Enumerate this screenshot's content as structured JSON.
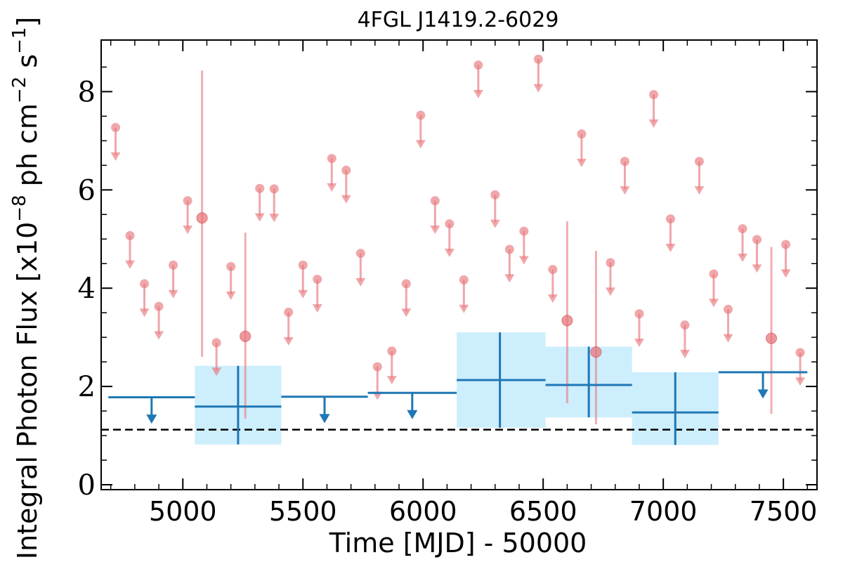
{
  "chart_data": {
    "type": "scatter",
    "title": "4FGL J1419.2-6029",
    "xlabel": "Time [MJD] - 50000",
    "ylabel": "Integral Photon Flux [x10^{-8} ph cm^{-2} s^{-1}]",
    "ylabel_parts": {
      "pre": "Integral Photon Flux [x10",
      "e1": "−8",
      "mid1": " ph cm",
      "e2": "−2",
      "mid2": " s",
      "e3": "−1",
      "post": "]"
    },
    "xlim": [
      4660,
      7640
    ],
    "ylim": [
      -0.1,
      9.05
    ],
    "xticks": [
      5000,
      5500,
      6000,
      6500,
      7000,
      7500
    ],
    "yticks": [
      0,
      2,
      4,
      6,
      8
    ],
    "reference_line": {
      "y": 1.12,
      "style": "dashed",
      "color": "#000000"
    },
    "colors": {
      "fine": "#e8787d",
      "coarse": "#1f77b4",
      "band": "#cdeefd"
    },
    "fine_bins": {
      "name": "",
      "upper_limits": [
        {
          "x": 4720,
          "y": 7.27
        },
        {
          "x": 4780,
          "y": 5.07
        },
        {
          "x": 4840,
          "y": 4.09
        },
        {
          "x": 4900,
          "y": 3.63
        },
        {
          "x": 4960,
          "y": 4.47
        },
        {
          "x": 5020,
          "y": 5.78
        },
        {
          "x": 5140,
          "y": 2.89
        },
        {
          "x": 5200,
          "y": 4.44
        },
        {
          "x": 5320,
          "y": 6.03
        },
        {
          "x": 5380,
          "y": 6.02
        },
        {
          "x": 5440,
          "y": 3.51
        },
        {
          "x": 5500,
          "y": 4.47
        },
        {
          "x": 5560,
          "y": 4.18
        },
        {
          "x": 5620,
          "y": 6.64
        },
        {
          "x": 5680,
          "y": 6.4
        },
        {
          "x": 5740,
          "y": 4.71
        },
        {
          "x": 5810,
          "y": 2.4
        },
        {
          "x": 5870,
          "y": 2.72
        },
        {
          "x": 5930,
          "y": 4.09
        },
        {
          "x": 5990,
          "y": 7.52
        },
        {
          "x": 6050,
          "y": 5.78
        },
        {
          "x": 6110,
          "y": 5.31
        },
        {
          "x": 6170,
          "y": 4.17
        },
        {
          "x": 6230,
          "y": 8.54
        },
        {
          "x": 6300,
          "y": 5.9
        },
        {
          "x": 6360,
          "y": 4.79
        },
        {
          "x": 6420,
          "y": 5.16
        },
        {
          "x": 6480,
          "y": 8.66
        },
        {
          "x": 6540,
          "y": 4.38
        },
        {
          "x": 6660,
          "y": 7.14
        },
        {
          "x": 6780,
          "y": 4.52
        },
        {
          "x": 6840,
          "y": 6.58
        },
        {
          "x": 6900,
          "y": 3.48
        },
        {
          "x": 6960,
          "y": 7.94
        },
        {
          "x": 7030,
          "y": 5.41
        },
        {
          "x": 7090,
          "y": 3.25
        },
        {
          "x": 7150,
          "y": 6.58
        },
        {
          "x": 7210,
          "y": 4.29
        },
        {
          "x": 7270,
          "y": 3.57
        },
        {
          "x": 7330,
          "y": 5.21
        },
        {
          "x": 7390,
          "y": 4.99
        },
        {
          "x": 7510,
          "y": 4.89
        },
        {
          "x": 7570,
          "y": 2.69
        }
      ],
      "detections": [
        {
          "x": 5080,
          "y": 5.43,
          "ylo": 2.6,
          "yhi": 8.43
        },
        {
          "x": 5260,
          "y": 3.02,
          "ylo": 1.35,
          "yhi": 5.13
        },
        {
          "x": 6600,
          "y": 3.34,
          "ylo": 1.66,
          "yhi": 5.36
        },
        {
          "x": 6720,
          "y": 2.7,
          "ylo": 1.23,
          "yhi": 4.76
        },
        {
          "x": 7450,
          "y": 2.98,
          "ylo": 1.44,
          "yhi": 4.84
        }
      ]
    },
    "coarse_bins": {
      "name": "",
      "upper_limits": [
        {
          "x0": 4690,
          "x1": 5050,
          "y": 1.78
        },
        {
          "x0": 5410,
          "x1": 5770,
          "y": 1.79
        },
        {
          "x0": 5770,
          "x1": 6140,
          "y": 1.87
        },
        {
          "x0": 7230,
          "x1": 7600,
          "y": 2.29
        }
      ],
      "detections": [
        {
          "x0": 5050,
          "x1": 5410,
          "x": 5230,
          "y": 1.59,
          "ylo": 0.82,
          "yhi": 2.42
        },
        {
          "x0": 6140,
          "x1": 6510,
          "x": 6320,
          "y": 2.13,
          "ylo": 1.16,
          "yhi": 3.1
        },
        {
          "x0": 6510,
          "x1": 6870,
          "x": 6690,
          "y": 2.03,
          "ylo": 1.37,
          "yhi": 2.81
        },
        {
          "x0": 6870,
          "x1": 7230,
          "x": 7050,
          "y": 1.47,
          "ylo": 0.81,
          "yhi": 2.29
        }
      ]
    }
  }
}
